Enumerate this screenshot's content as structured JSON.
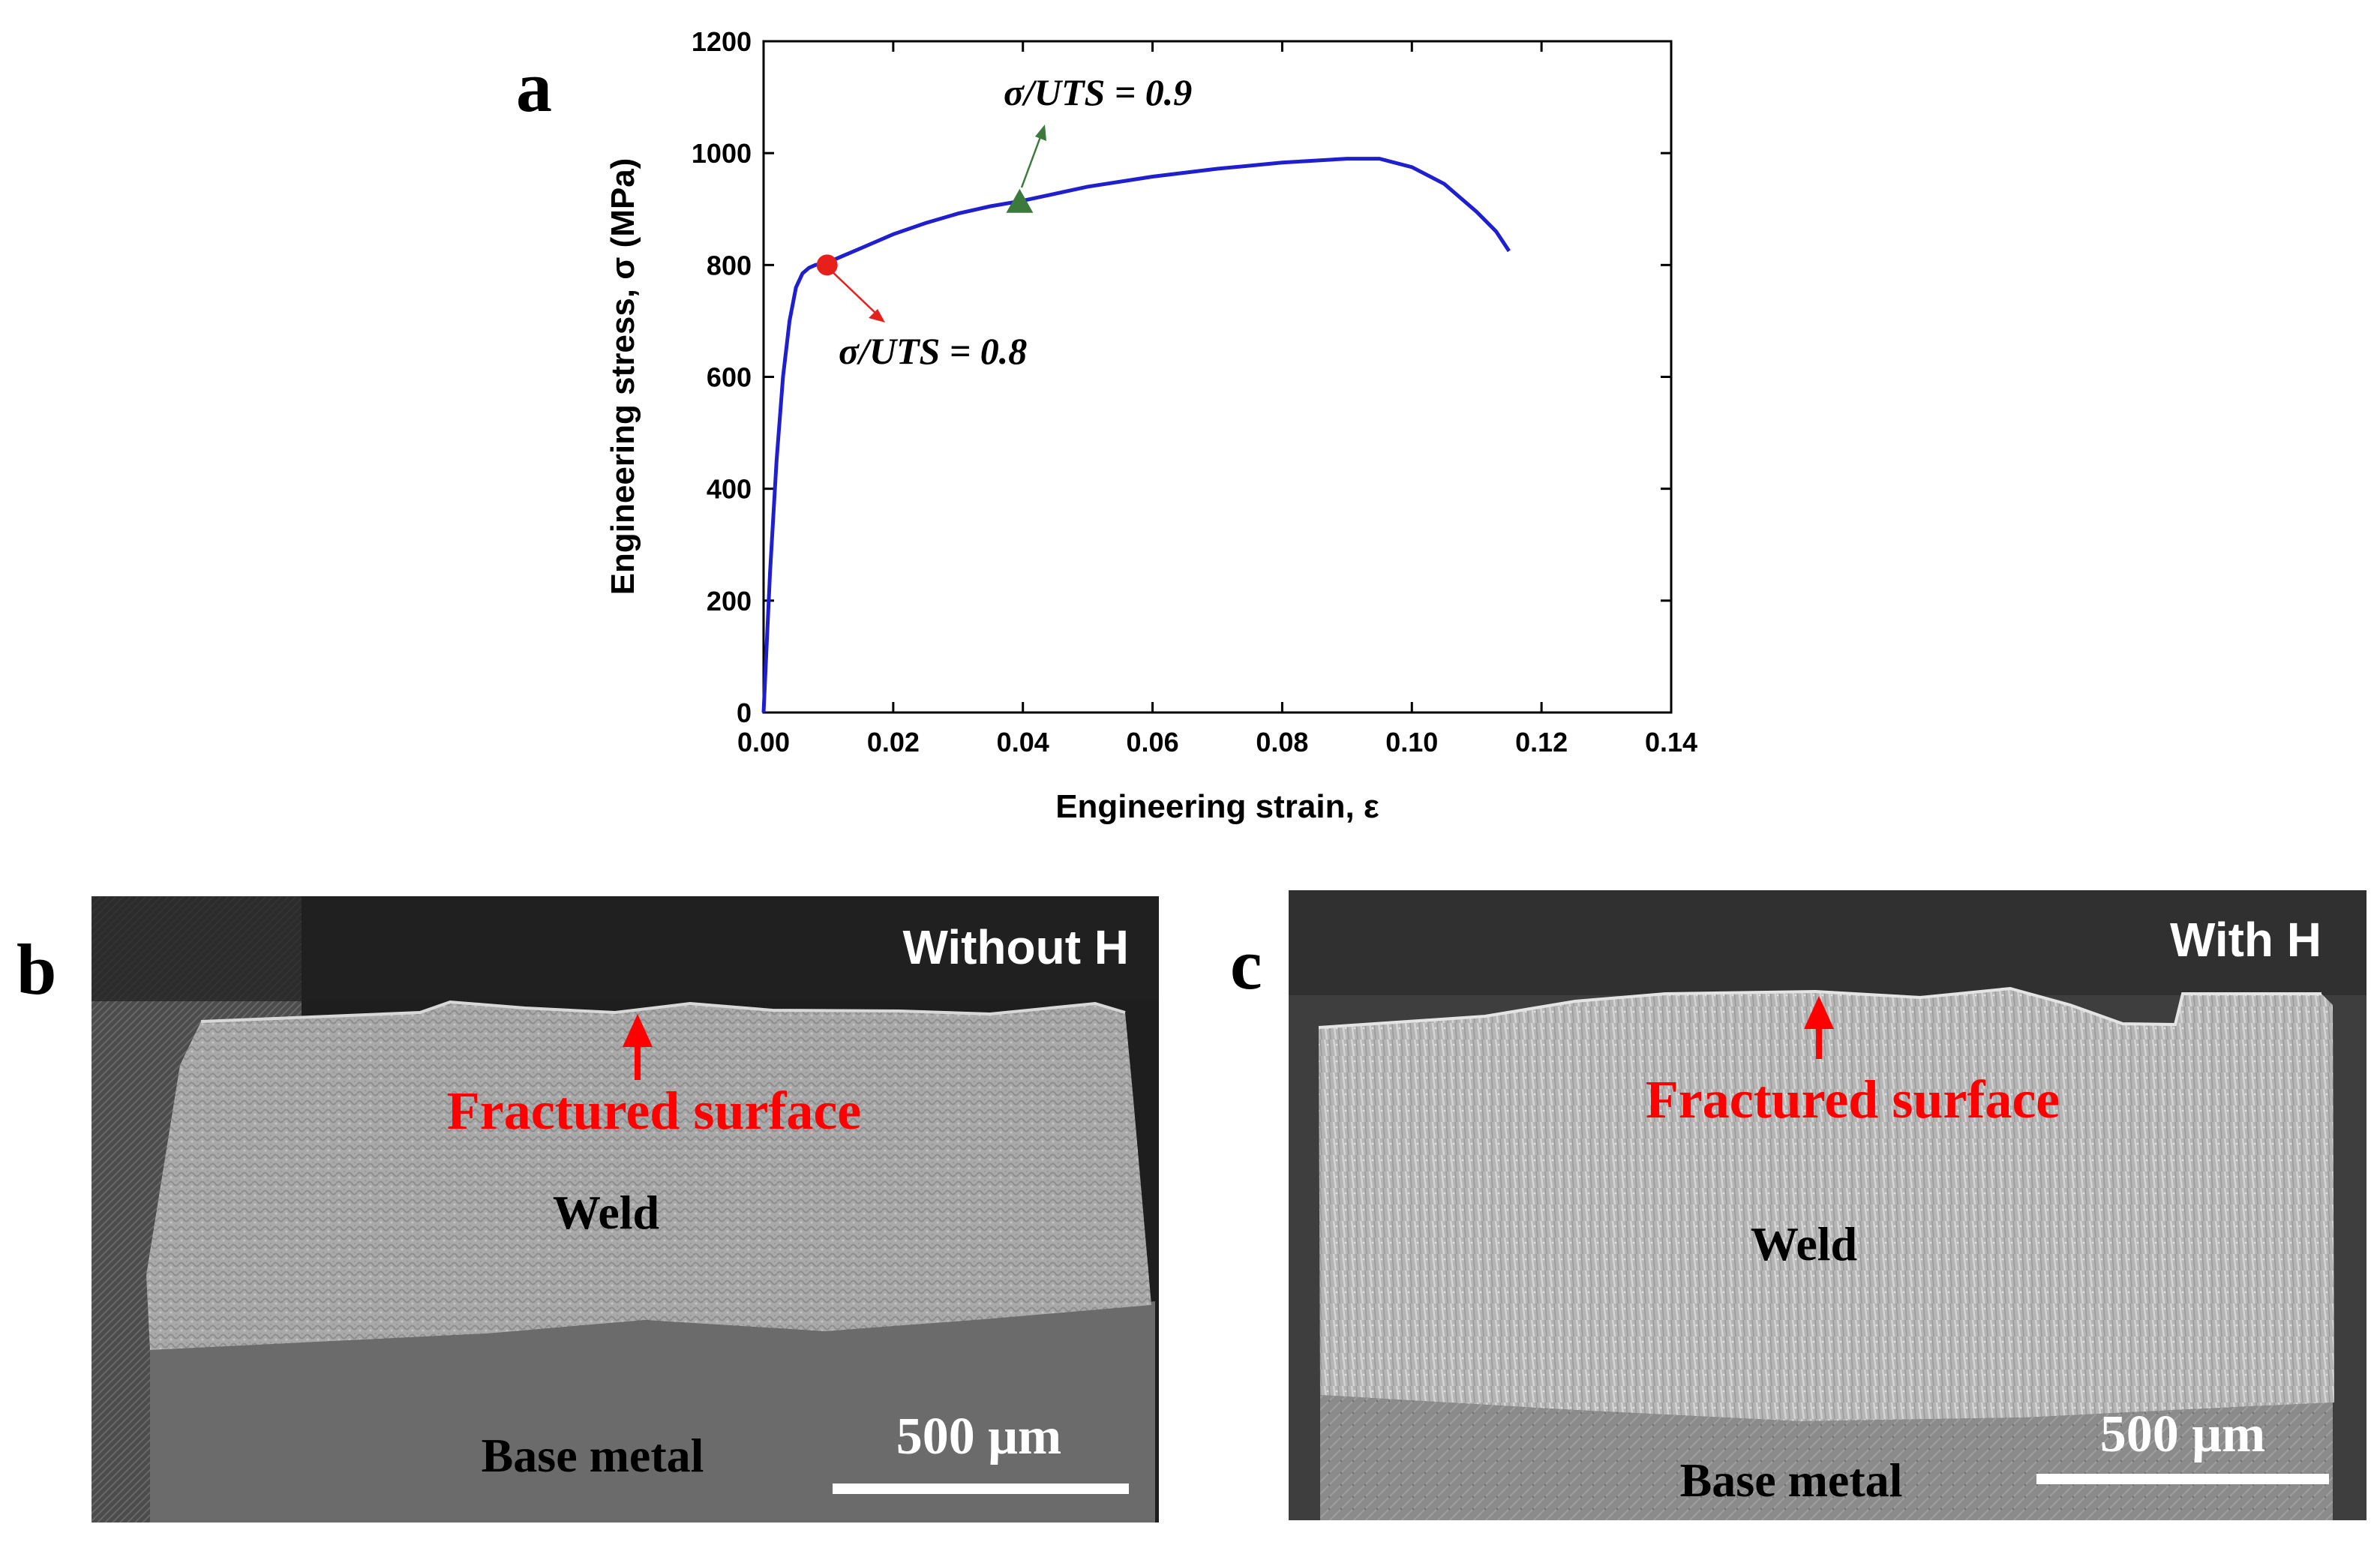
{
  "panels": {
    "a": {
      "letter": "a"
    },
    "b": {
      "letter": "b",
      "condition": "Without H",
      "fracture_label": "Fractured surface",
      "weld_label": "Weld",
      "base_label": "Base metal",
      "scale_label": "500 μm"
    },
    "c": {
      "letter": "c",
      "condition": "With H",
      "fracture_label": "Fractured surface",
      "weld_label": "Weld",
      "base_label": "Base metal",
      "scale_label": "500 μm"
    }
  },
  "chart_data": {
    "type": "line",
    "xlabel": "Engineering strain, ε",
    "ylabel": "Engineering stress, σ (MPa)",
    "xlim": [
      0,
      0.14
    ],
    "ylim": [
      0,
      1200
    ],
    "xticks": [
      "0.00",
      "0.02",
      "0.04",
      "0.06",
      "0.08",
      "0.10",
      "0.12",
      "0.14"
    ],
    "yticks": [
      "0",
      "200",
      "400",
      "600",
      "800",
      "1000",
      "1200"
    ],
    "grid": false,
    "series": [
      {
        "color": "#1f1fcf",
        "x": [
          0,
          0.001,
          0.002,
          0.003,
          0.004,
          0.005,
          0.006,
          0.007,
          0.008,
          0.009,
          0.01,
          0.012,
          0.015,
          0.02,
          0.025,
          0.03,
          0.035,
          0.04,
          0.05,
          0.06,
          0.07,
          0.08,
          0.09,
          0.095,
          0.1,
          0.105,
          0.11,
          0.113,
          0.115
        ],
        "y": [
          0,
          250,
          450,
          600,
          700,
          760,
          785,
          795,
          800,
          802,
          805,
          815,
          830,
          855,
          875,
          892,
          905,
          915,
          940,
          958,
          972,
          983,
          990,
          990,
          975,
          945,
          895,
          860,
          825
        ]
      }
    ],
    "markers": [
      {
        "shape": "circle",
        "color": "#e8201c",
        "x": 0.0098,
        "y": 800,
        "label": "σ/UTS = 0.8"
      },
      {
        "shape": "triangle",
        "color": "#3c7a3c",
        "x": 0.0395,
        "y": 912,
        "label": "σ/UTS = 0.9"
      }
    ]
  },
  "colors": {
    "annotation_red": "#ff0000",
    "line_blue": "#1f1fcf",
    "marker_red": "#e8201c",
    "marker_green": "#3c7a3c"
  }
}
